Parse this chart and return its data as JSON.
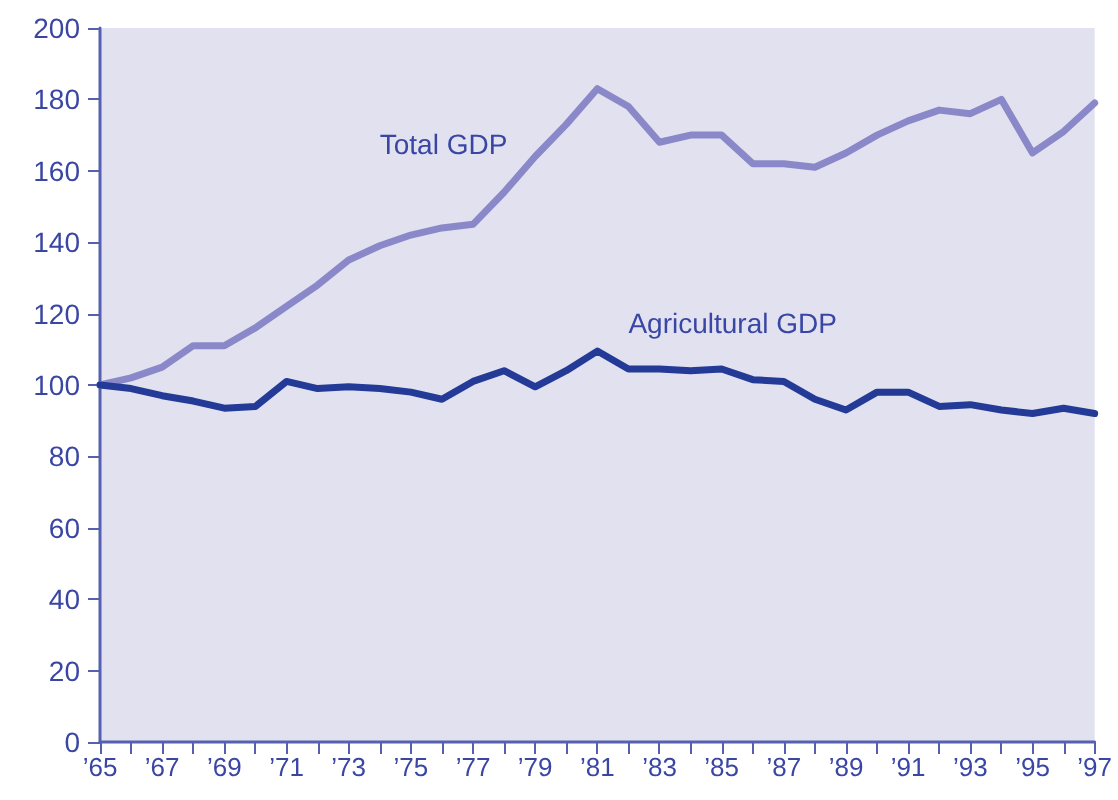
{
  "chart_data": {
    "type": "line",
    "categories": [
      "’65",
      null,
      "’67",
      null,
      "’69",
      null,
      "’71",
      null,
      "’73",
      null,
      "’75",
      null,
      "’77",
      null,
      "’79",
      null,
      "’81",
      null,
      "’83",
      null,
      "’85",
      null,
      "’87",
      null,
      "’89",
      null,
      "’91",
      null,
      "’93",
      null,
      "’95",
      null,
      "’97"
    ],
    "series": [
      {
        "name": "Total GDP",
        "color": "#8a88c8",
        "values": [
          100,
          102,
          105,
          111,
          111,
          116,
          122,
          128,
          135,
          139,
          142,
          144,
          145,
          154,
          164,
          173,
          183,
          178,
          168,
          170,
          170,
          162,
          162,
          161,
          165,
          170,
          174,
          177,
          176,
          180,
          165,
          171,
          179
        ]
      },
      {
        "name": "Agricultural GDP",
        "color": "#233a96",
        "values": [
          100,
          99,
          97,
          95.5,
          93.5,
          94,
          101,
          99,
          99.5,
          99,
          98,
          96,
          101,
          104,
          99.5,
          104,
          109.5,
          104.5,
          104.5,
          104,
          104.5,
          101.5,
          101,
          96,
          93,
          98,
          98,
          94,
          94.5,
          93,
          92,
          93.5,
          92
        ]
      }
    ],
    "ylim": [
      0,
      200
    ],
    "yticks": [
      0,
      20,
      40,
      60,
      80,
      100,
      120,
      140,
      160,
      180,
      200
    ],
    "grid": false,
    "legend": false,
    "marker": "none",
    "line_style": "solid"
  }
}
